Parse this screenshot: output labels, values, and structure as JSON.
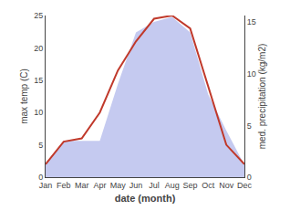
{
  "chart_data": {
    "type": "line",
    "categories": [
      "Jan",
      "Feb",
      "Mar",
      "Apr",
      "May",
      "Jun",
      "Jul",
      "Aug",
      "Sep",
      "Oct",
      "Nov",
      "Dec"
    ],
    "series": [
      {
        "type": "area",
        "color": "#c5caf0",
        "axis": "y2",
        "values": [
          1.2,
          3.5,
          3.5,
          3.5,
          9.0,
          14.0,
          15.0,
          15.5,
          14.0,
          8.0,
          4.5,
          1.2
        ]
      },
      {
        "type": "line",
        "color": "#c0392b",
        "values": [
          2.0,
          5.5,
          6.0,
          10.0,
          16.5,
          21.0,
          24.5,
          25.0,
          23.0,
          14.0,
          5.0,
          2.0
        ]
      }
    ],
    "xlabel": "date (month)",
    "ylabel": "max temp (C)",
    "y2label": "med. precipitation (kg/m2)",
    "ylim": [
      0,
      25
    ],
    "yticks": [
      0,
      5,
      10,
      15,
      20,
      25
    ],
    "y2lim": [
      0,
      15.625
    ],
    "y2ticks": [
      0,
      5,
      10,
      15
    ],
    "grid": false
  }
}
